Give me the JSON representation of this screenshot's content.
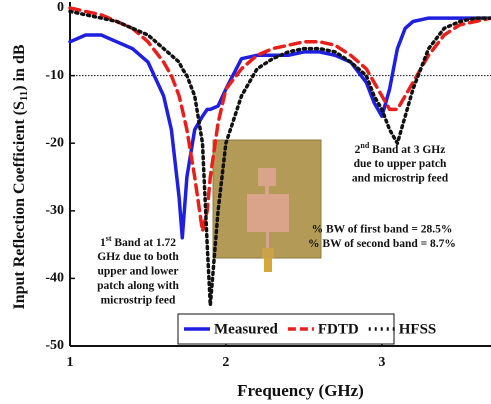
{
  "chart_data": {
    "type": "line",
    "x_label": "Frequency (GHz)",
    "y_label": [
      "Input Reflection Coefficient (S",
      "11",
      ") in dB"
    ],
    "xlim": [
      1,
      3.7
    ],
    "xticks": [
      1,
      2,
      3
    ],
    "ylim": [
      -50,
      0
    ],
    "yticks": [
      0,
      -10,
      -20,
      -30,
      -40,
      -50
    ],
    "reference_line": -10,
    "legend": "bottom",
    "x": [
      1.0,
      1.1,
      1.2,
      1.3,
      1.4,
      1.5,
      1.6,
      1.65,
      1.7,
      1.72,
      1.75,
      1.8,
      1.85,
      1.88,
      1.9,
      1.95,
      2.0,
      2.1,
      2.2,
      2.3,
      2.4,
      2.5,
      2.6,
      2.7,
      2.8,
      2.9,
      2.95,
      3.0,
      3.05,
      3.1,
      3.15,
      3.2,
      3.3,
      3.4,
      3.5,
      3.6,
      3.7
    ],
    "series": [
      {
        "name": "Measured",
        "color": "#1f1fe0",
        "style": "solid",
        "values": [
          -5,
          -4,
          -4,
          -5,
          -6,
          -8,
          -13,
          -18,
          -28,
          -34,
          -25,
          -18,
          -16,
          -15,
          -15,
          -14.5,
          -12,
          -7.5,
          -7,
          -7,
          -7,
          -6.5,
          -6.5,
          -7,
          -8,
          -11,
          -14,
          -16,
          -12,
          -6,
          -3,
          -2,
          -1.5,
          -1.5,
          -1.5,
          -1.5,
          -1.5
        ]
      },
      {
        "name": "FDTD",
        "color": "#e8201c",
        "style": "dashed",
        "values": [
          0,
          -0.5,
          -1,
          -2,
          -3,
          -5,
          -8,
          -10,
          -13,
          -15,
          -18,
          -25,
          -33,
          -30,
          -25,
          -17,
          -12,
          -9,
          -7,
          -6,
          -5.5,
          -5,
          -5,
          -5.5,
          -7,
          -9,
          -11,
          -13,
          -15,
          -15,
          -13,
          -11,
          -7,
          -4,
          -2.5,
          -2,
          -1.5
        ]
      },
      {
        "name": "HFSS",
        "color": "#111111",
        "style": "dotted",
        "values": [
          -0.5,
          -1,
          -1.5,
          -2,
          -3,
          -4,
          -6,
          -7,
          -8,
          -9,
          -10,
          -13,
          -20,
          -35,
          -44,
          -30,
          -20,
          -13,
          -9,
          -7.5,
          -6.5,
          -6,
          -6,
          -6.5,
          -8,
          -10,
          -13,
          -15,
          -18,
          -20,
          -16,
          -12,
          -6,
          -3,
          -2,
          -1.5,
          -1.5
        ]
      }
    ],
    "annotations": [
      {
        "lines": [
          [
            "1",
            "st",
            " Band at 1.72"
          ],
          "GHz due to both",
          "upper and lower",
          "patch along with",
          "microstrip feed"
        ]
      },
      {
        "lines": [
          [
            "2",
            "nd",
            " Band at 3 GHz"
          ],
          "due to  upper patch",
          "and microstrip feed"
        ]
      },
      {
        "lines": [
          "% BW of first band = 28.5%",
          "% BW of second band = 8.7%"
        ]
      }
    ]
  }
}
